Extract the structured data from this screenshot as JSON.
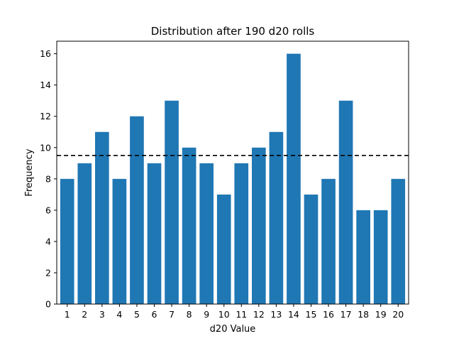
{
  "chart_data": {
    "type": "bar",
    "title": "Distribution after 190 d20 rolls",
    "xlabel": "d20 Value",
    "ylabel": "Frequency",
    "categories": [
      "1",
      "2",
      "3",
      "4",
      "5",
      "6",
      "7",
      "8",
      "9",
      "10",
      "11",
      "12",
      "13",
      "14",
      "15",
      "16",
      "17",
      "18",
      "19",
      "20"
    ],
    "values": [
      8,
      9,
      11,
      8,
      12,
      9,
      13,
      10,
      9,
      7,
      9,
      10,
      11,
      16,
      7,
      8,
      13,
      6,
      6,
      8
    ],
    "expected_line": 9.5,
    "ylim": [
      0,
      16.8
    ],
    "xlim": [
      0.4,
      20.6
    ],
    "yticks": [
      0,
      2,
      4,
      6,
      8,
      10,
      12,
      14,
      16
    ],
    "grid": false,
    "bar_color": "#1f77b4",
    "expected_line_color": "#000000",
    "expected_line_style": "dashed"
  }
}
